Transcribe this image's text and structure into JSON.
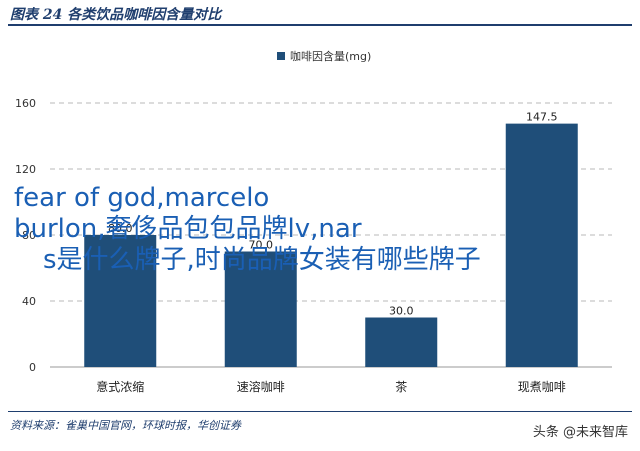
{
  "figure_title": "图表 24   各类饮品咖啡因含量对比",
  "source": "资料来源：雀巢中国官网，环球时报，华创证券",
  "watermark": "头条 @未来智库",
  "overlay_text": {
    "line1": "fear of god,marcelo",
    "line2": "burlon,奢侈品包包品牌lv,nar",
    "line3": "s是什么牌子,时尚品牌女装有哪些牌子"
  },
  "colors": {
    "bar": "#1f4e79",
    "text": "#1f3e6e",
    "overlay": "#1a5fb4"
  },
  "chart_data": {
    "type": "bar",
    "categories": [
      "意式浓缩",
      "速溶咖啡",
      "茶",
      "现煮咖啡"
    ],
    "series": [
      {
        "name": "咖啡因含量(mg)",
        "values": [
          80.0,
          70.0,
          30.0,
          147.5
        ]
      }
    ],
    "data_labels": [
      "80.0",
      "70.0",
      "30.0",
      "147.5"
    ],
    "yticks": [
      0,
      40,
      80,
      120,
      160
    ],
    "ylim": [
      0,
      160
    ],
    "grid": true,
    "legend": "top-center"
  }
}
